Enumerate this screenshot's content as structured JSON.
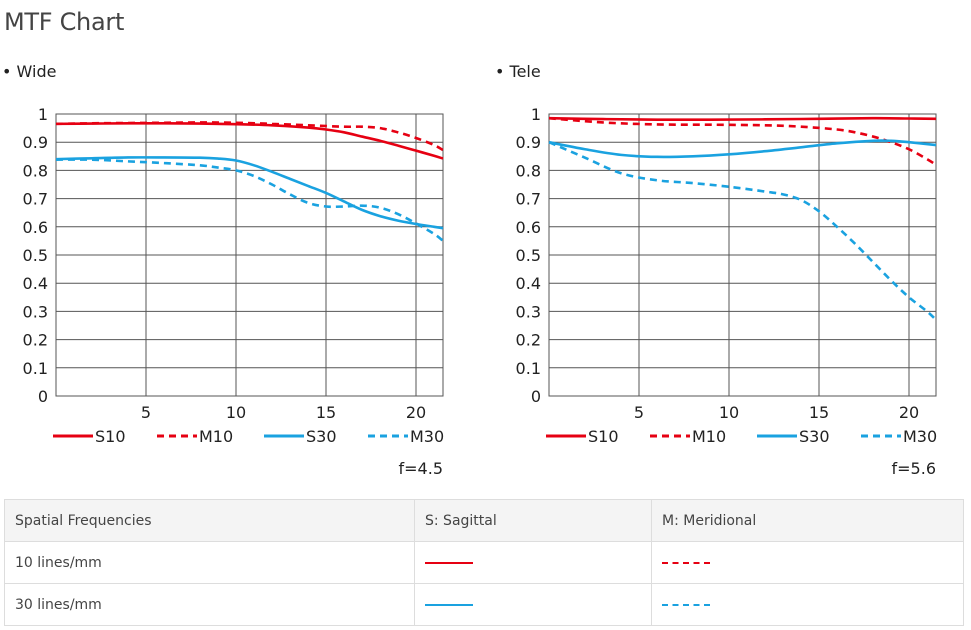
{
  "page": {
    "title": "MTF Chart"
  },
  "colors": {
    "red": "#e60012",
    "blue": "#1aa2e0",
    "grid": "#555555"
  },
  "chart_data": [
    {
      "type": "line",
      "heading": "• Wide",
      "aperture": "f=4.5",
      "xlim": [
        0,
        21.5
      ],
      "ylim": [
        0,
        1
      ],
      "xticks": [
        5,
        10,
        15,
        20
      ],
      "xtick_labels": [
        "5",
        "10",
        "15",
        "20"
      ],
      "yticks": [
        0,
        0.1,
        0.2,
        0.3,
        0.4,
        0.5,
        0.6,
        0.7,
        0.8,
        0.9,
        1
      ],
      "ytick_labels": [
        "0",
        "0.1",
        "0.2",
        "0.3",
        "0.4",
        "0.5",
        "0.6",
        "0.7",
        "0.8",
        "0.9",
        "1"
      ],
      "grid": true,
      "legend_position": "bottom",
      "series": [
        {
          "name": "S10",
          "color": "#e60012",
          "dashed": false,
          "x": [
            0,
            2,
            4,
            6,
            8,
            10,
            12,
            14,
            15,
            16,
            17,
            18,
            19,
            20,
            21,
            21.5
          ],
          "y": [
            0.965,
            0.966,
            0.967,
            0.967,
            0.966,
            0.964,
            0.96,
            0.952,
            0.945,
            0.935,
            0.92,
            0.905,
            0.888,
            0.87,
            0.852,
            0.842
          ]
        },
        {
          "name": "M10",
          "color": "#e60012",
          "dashed": true,
          "x": [
            0,
            2,
            4,
            6,
            8,
            10,
            12,
            14,
            16,
            17,
            18,
            19,
            20,
            21,
            21.5
          ],
          "y": [
            0.965,
            0.967,
            0.968,
            0.969,
            0.97,
            0.969,
            0.965,
            0.96,
            0.955,
            0.955,
            0.95,
            0.935,
            0.915,
            0.89,
            0.872
          ]
        },
        {
          "name": "S30",
          "color": "#1aa2e0",
          "dashed": false,
          "x": [
            0,
            2,
            4,
            6,
            8,
            9,
            10,
            11,
            12,
            13,
            14,
            15,
            16,
            17,
            18,
            19,
            20,
            21,
            21.5
          ],
          "y": [
            0.84,
            0.843,
            0.846,
            0.846,
            0.845,
            0.842,
            0.835,
            0.818,
            0.795,
            0.77,
            0.745,
            0.72,
            0.69,
            0.66,
            0.638,
            0.622,
            0.61,
            0.6,
            0.595
          ]
        },
        {
          "name": "M30",
          "color": "#1aa2e0",
          "dashed": true,
          "x": [
            0,
            2,
            4,
            6,
            8,
            9,
            10,
            11,
            12,
            13,
            14,
            15,
            16,
            17,
            18,
            19,
            20,
            21,
            21.5
          ],
          "y": [
            0.838,
            0.838,
            0.832,
            0.826,
            0.818,
            0.81,
            0.8,
            0.78,
            0.75,
            0.715,
            0.685,
            0.672,
            0.672,
            0.675,
            0.668,
            0.645,
            0.612,
            0.575,
            0.55
          ]
        }
      ]
    },
    {
      "type": "line",
      "heading": "• Tele",
      "aperture": "f=5.6",
      "xlim": [
        0,
        21.5
      ],
      "ylim": [
        0,
        1
      ],
      "xticks": [
        5,
        10,
        15,
        20
      ],
      "xtick_labels": [
        "5",
        "10",
        "15",
        "20"
      ],
      "yticks": [
        0,
        0.1,
        0.2,
        0.3,
        0.4,
        0.5,
        0.6,
        0.7,
        0.8,
        0.9,
        1
      ],
      "ytick_labels": [
        "0",
        "0.1",
        "0.2",
        "0.3",
        "0.4",
        "0.5",
        "0.6",
        "0.7",
        "0.8",
        "0.9",
        "1"
      ],
      "grid": true,
      "legend_position": "bottom",
      "series": [
        {
          "name": "S10",
          "color": "#e60012",
          "dashed": false,
          "x": [
            0,
            3,
            6,
            9,
            12,
            15,
            18,
            20,
            21.5
          ],
          "y": [
            0.985,
            0.982,
            0.98,
            0.98,
            0.981,
            0.983,
            0.985,
            0.984,
            0.983
          ]
        },
        {
          "name": "M10",
          "color": "#e60012",
          "dashed": true,
          "x": [
            0,
            3,
            6,
            9,
            12,
            14,
            16,
            17,
            18,
            19,
            20,
            21,
            21.5
          ],
          "y": [
            0.985,
            0.97,
            0.963,
            0.962,
            0.96,
            0.955,
            0.945,
            0.935,
            0.92,
            0.9,
            0.875,
            0.84,
            0.82
          ]
        },
        {
          "name": "S30",
          "color": "#1aa2e0",
          "dashed": false,
          "x": [
            0,
            2,
            4,
            6,
            8,
            10,
            12,
            14,
            16,
            18,
            19,
            20,
            21.5
          ],
          "y": [
            0.9,
            0.875,
            0.855,
            0.848,
            0.85,
            0.857,
            0.868,
            0.882,
            0.896,
            0.905,
            0.905,
            0.9,
            0.89
          ]
        },
        {
          "name": "M30",
          "color": "#1aa2e0",
          "dashed": true,
          "x": [
            0,
            2,
            4,
            6,
            8,
            10,
            12,
            13,
            14,
            15,
            16,
            17,
            18,
            19,
            20,
            21,
            21.5
          ],
          "y": [
            0.9,
            0.845,
            0.79,
            0.765,
            0.755,
            0.742,
            0.725,
            0.715,
            0.695,
            0.655,
            0.6,
            0.54,
            0.475,
            0.41,
            0.35,
            0.3,
            0.27
          ]
        }
      ]
    }
  ],
  "legend_table": {
    "headers": [
      "Spatial Frequencies",
      "S: Sagittal",
      "M: Meridional"
    ],
    "rows": [
      {
        "label": "10 lines/mm",
        "color": "#e60012"
      },
      {
        "label": "30 lines/mm",
        "color": "#1aa2e0"
      }
    ]
  }
}
